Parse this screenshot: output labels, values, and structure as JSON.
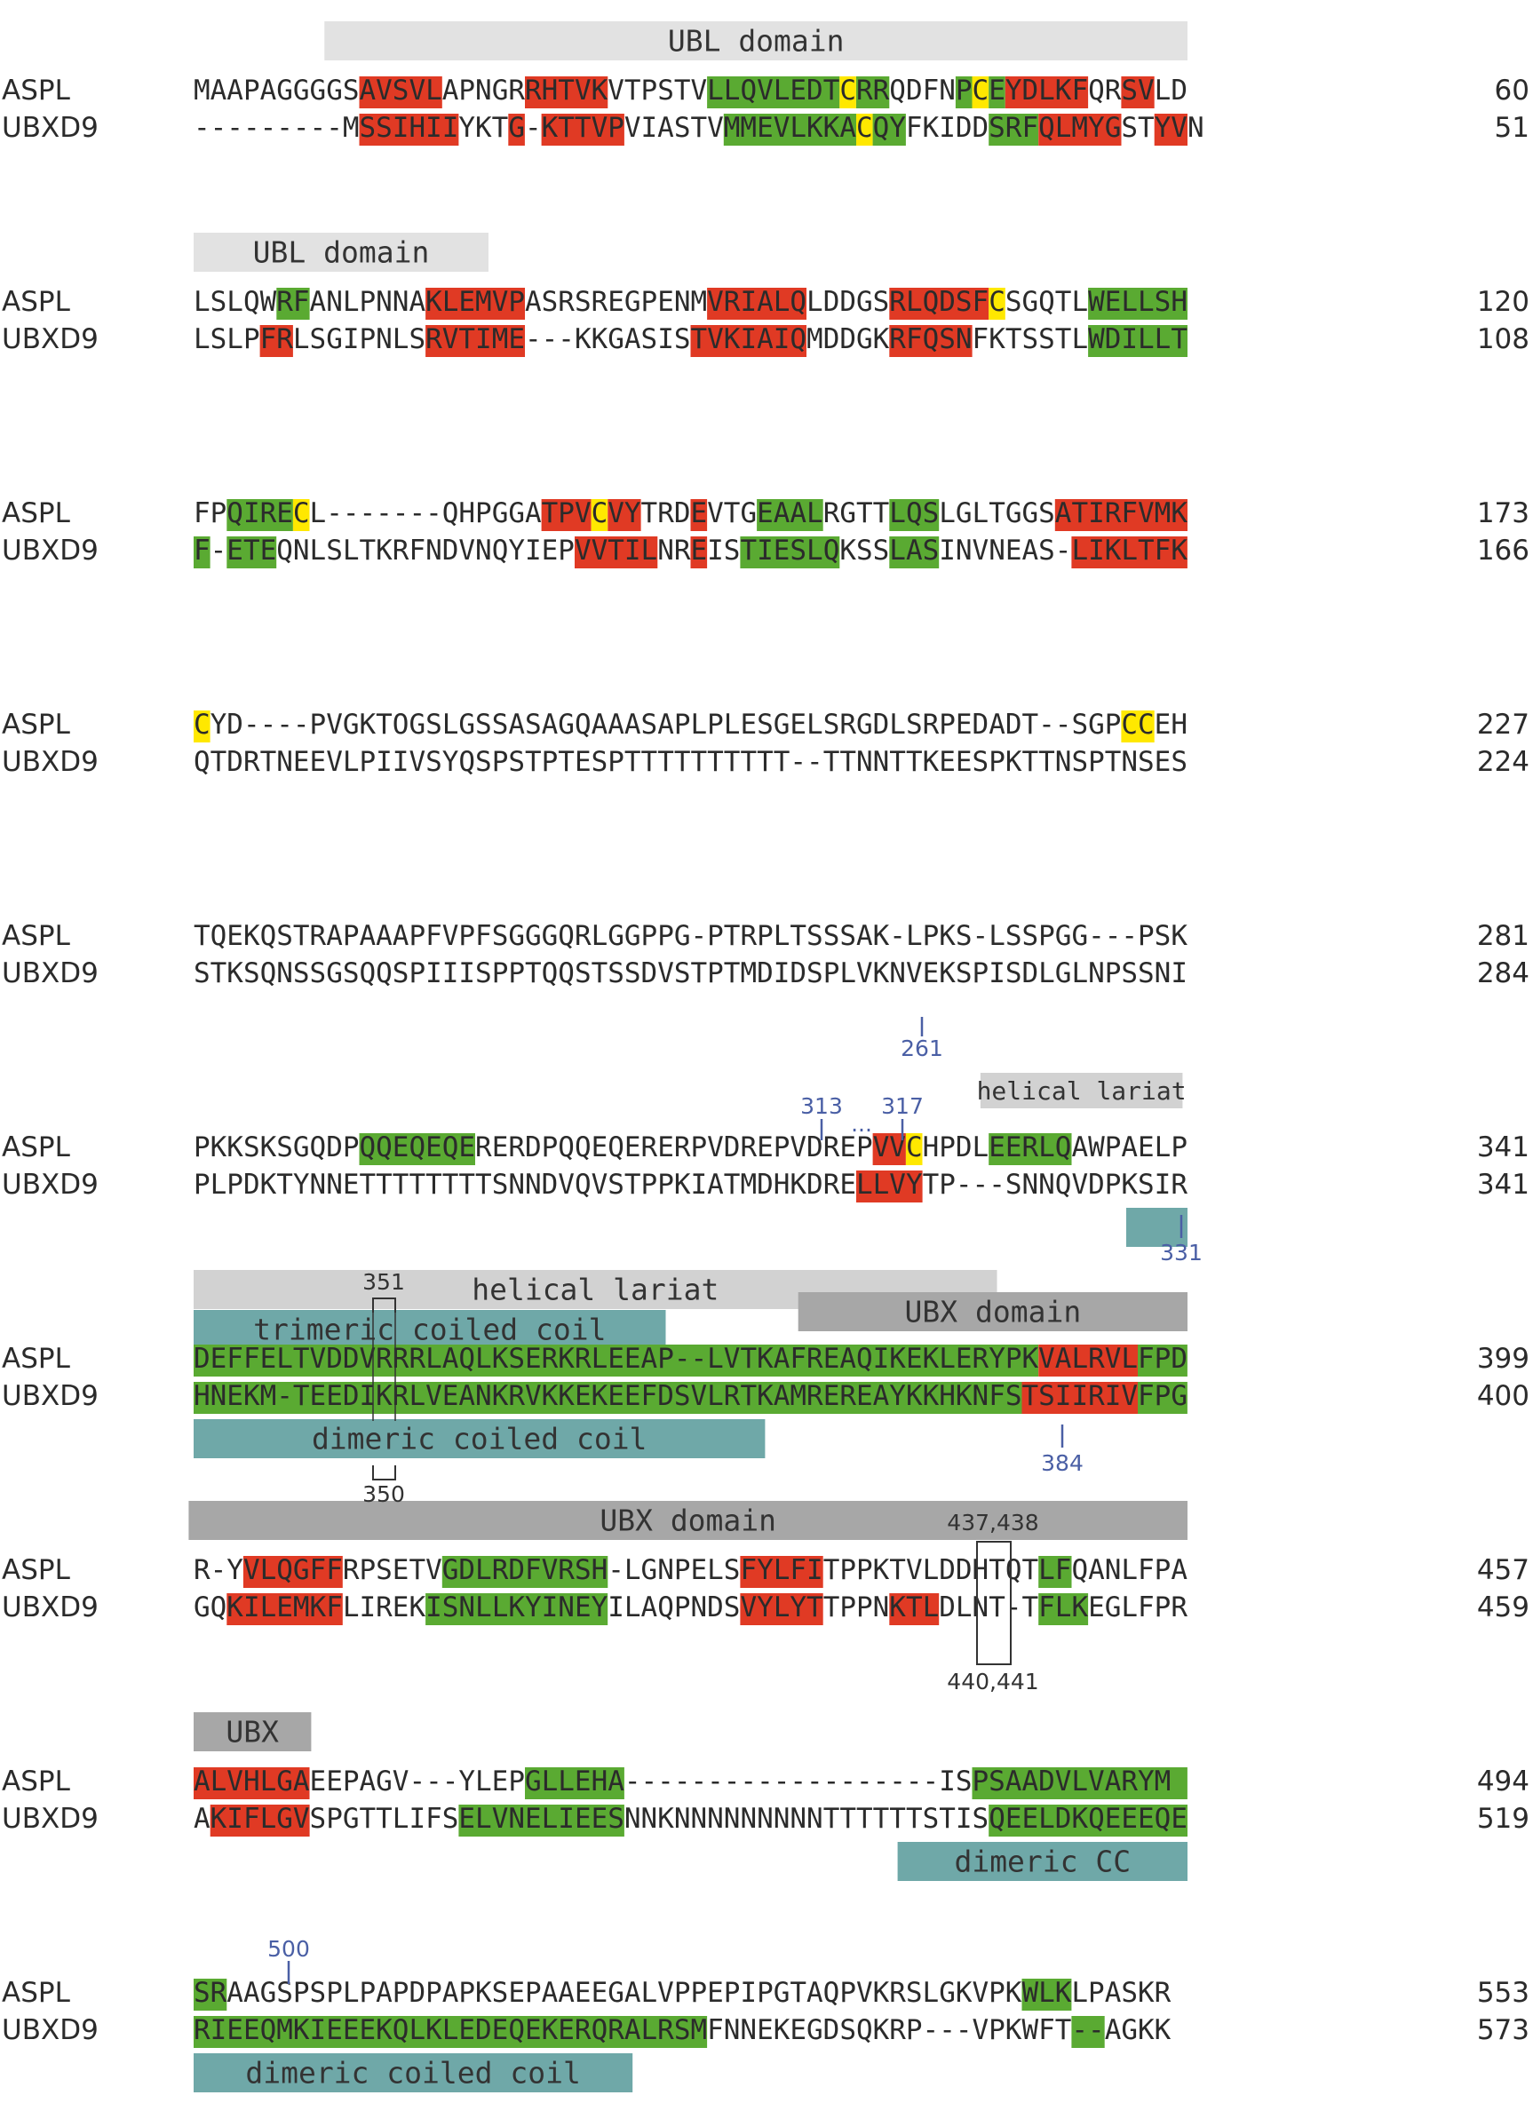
{
  "colors": {
    "strand": "#e03a24",
    "helix": "#5aaa32",
    "cysteine": "#ffe800",
    "bar_light": "#e2e2e2",
    "bar_mid": "#d2d2d2",
    "bar_dark": "#a7a7a7",
    "coiled_coil": "#6fa8a8",
    "marker_blue": "#4a5fa5"
  },
  "blocks": [
    {
      "rows": [
        {
          "name": "ASPL",
          "seq": "MAAPAGGGGSAVSVLAPNGRRHTVKVTPSTVLLQVLEDTCRRQDFNPCEYDLKFQRSVLD",
          "end": "60"
        },
        {
          "name": "UBXD9",
          "seq": "---------MSSIHIIYKTG-KTTVPVIASTVMMEVLKKACQYFKIDDSRFQLMYGSTYVN",
          "end": "51"
        }
      ],
      "regions": [
        {
          "row": 0,
          "s": 10,
          "e": 15,
          "t": "strand"
        },
        {
          "row": 0,
          "s": 20,
          "e": 25,
          "t": "strand"
        },
        {
          "row": 0,
          "s": 31,
          "e": 39,
          "t": "helix"
        },
        {
          "row": 0,
          "s": 39,
          "e": 40,
          "t": "cysteine"
        },
        {
          "row": 0,
          "s": 40,
          "e": 42,
          "t": "helix"
        },
        {
          "row": 0,
          "s": 46,
          "e": 47,
          "t": "helix"
        },
        {
          "row": 0,
          "s": 47,
          "e": 48,
          "t": "cysteine"
        },
        {
          "row": 0,
          "s": 48,
          "e": 49,
          "t": "helix"
        },
        {
          "row": 0,
          "s": 49,
          "e": 54,
          "t": "strand"
        },
        {
          "row": 0,
          "s": 56,
          "e": 58,
          "t": "strand"
        },
        {
          "row": 1,
          "s": 10,
          "e": 16,
          "t": "strand"
        },
        {
          "row": 1,
          "s": 19,
          "e": 20,
          "t": "strand"
        },
        {
          "row": 1,
          "s": 21,
          "e": 26,
          "t": "strand"
        },
        {
          "row": 1,
          "s": 32,
          "e": 40,
          "t": "helix"
        },
        {
          "row": 1,
          "s": 40,
          "e": 41,
          "t": "cysteine"
        },
        {
          "row": 1,
          "s": 41,
          "e": 43,
          "t": "helix"
        },
        {
          "row": 1,
          "s": 48,
          "e": 51,
          "t": "helix"
        },
        {
          "row": 1,
          "s": 51,
          "e": 56,
          "t": "strand"
        },
        {
          "row": 1,
          "s": 58,
          "e": 60,
          "t": "strand"
        }
      ]
    },
    {
      "rows": [
        {
          "name": "ASPL",
          "seq": "LSLQWRFANLPNNAKLEMVPASRSREGPENMVRIALQLDDGSRLQDSFCSGQTLWELLSH",
          "end": "120"
        },
        {
          "name": "UBXD9",
          "seq": "LSLPFRLSGIPNLSRVTIME---KKGASISTVKIAIQMDDGKRFQSNFKTSSTLWDILLT",
          "end": "108"
        }
      ],
      "regions": [
        {
          "row": 0,
          "s": 5,
          "e": 7,
          "t": "helix"
        },
        {
          "row": 0,
          "s": 14,
          "e": 20,
          "t": "strand"
        },
        {
          "row": 0,
          "s": 31,
          "e": 37,
          "t": "strand"
        },
        {
          "row": 0,
          "s": 42,
          "e": 48,
          "t": "strand"
        },
        {
          "row": 0,
          "s": 48,
          "e": 49,
          "t": "cysteine"
        },
        {
          "row": 0,
          "s": 54,
          "e": 60,
          "t": "helix"
        },
        {
          "row": 1,
          "s": 4,
          "e": 6,
          "t": "strand"
        },
        {
          "row": 1,
          "s": 14,
          "e": 20,
          "t": "strand"
        },
        {
          "row": 1,
          "s": 30,
          "e": 37,
          "t": "strand"
        },
        {
          "row": 1,
          "s": 42,
          "e": 47,
          "t": "strand"
        },
        {
          "row": 1,
          "s": 54,
          "e": 60,
          "t": "helix"
        }
      ]
    },
    {
      "rows": [
        {
          "name": "ASPL",
          "seq": "FPQIRECL-------QHPGGATPVCVYTRDEVTGEAALRGTTLQSLGLTGGSATIRFVMK",
          "end": "173"
        },
        {
          "name": "UBXD9",
          "seq": "F-ETEQNLSLTKRFNDVNQYIEPVVTILNREISTIESLQKSSLASINVNEAS-LIKLTFK",
          "end": "166"
        }
      ],
      "regions": [
        {
          "row": 0,
          "s": 2,
          "e": 6,
          "t": "helix"
        },
        {
          "row": 0,
          "s": 6,
          "e": 7,
          "t": "cysteine"
        },
        {
          "row": 0,
          "s": 21,
          "e": 24,
          "t": "strand"
        },
        {
          "row": 0,
          "s": 24,
          "e": 25,
          "t": "cysteine"
        },
        {
          "row": 0,
          "s": 25,
          "e": 27,
          "t": "strand"
        },
        {
          "row": 0,
          "s": 30,
          "e": 31,
          "t": "strand"
        },
        {
          "row": 0,
          "s": 34,
          "e": 38,
          "t": "helix"
        },
        {
          "row": 0,
          "s": 42,
          "e": 45,
          "t": "helix"
        },
        {
          "row": 0,
          "s": 52,
          "e": 60,
          "t": "strand"
        },
        {
          "row": 1,
          "s": 0,
          "e": 1,
          "t": "helix"
        },
        {
          "row": 1,
          "s": 2,
          "e": 5,
          "t": "helix"
        },
        {
          "row": 1,
          "s": 23,
          "e": 28,
          "t": "strand"
        },
        {
          "row": 1,
          "s": 30,
          "e": 31,
          "t": "strand"
        },
        {
          "row": 1,
          "s": 33,
          "e": 39,
          "t": "helix"
        },
        {
          "row": 1,
          "s": 42,
          "e": 45,
          "t": "helix"
        },
        {
          "row": 1,
          "s": 53,
          "e": 60,
          "t": "strand"
        }
      ]
    },
    {
      "rows": [
        {
          "name": "ASPL",
          "seq": "CYD----PVGKTOGSLGSSASAGQAAASAPLPLESGELSRGDLSRPEDADT--SGPCCEH",
          "end": "227"
        },
        {
          "name": "UBXD9",
          "seq": "QTDRTNEEVLPIIVSYQSPSTPTESPTTTTTTTTTT--TTNNTTKEESPKTTNSPTNSES",
          "end": "224"
        }
      ],
      "regions": [
        {
          "row": 0,
          "s": 0,
          "e": 1,
          "t": "cysteine"
        },
        {
          "row": 0,
          "s": 56,
          "e": 58,
          "t": "cysteine"
        }
      ]
    },
    {
      "rows": [
        {
          "name": "ASPL",
          "seq": "TQEKQSTRAPAAAPFVPFSGGGQRLGGPPG-PTRPLTSSSAK-LPKS-LSSPGG---PSK",
          "end": "281"
        },
        {
          "name": "UBXD9",
          "seq": "STKSQNSSGSQQSPIIISPPTQQSTSSDVSTPTMDIDSPLVKNVEKSPISDLGLNPSSNI",
          "end": "284"
        }
      ],
      "regions": []
    },
    {
      "rows": [
        {
          "name": "ASPL",
          "seq": "PKKSKSGQDPQQEQEQERERDPQQEQERERPVDREPVDREPVVCHPDLEERLQAWPAELP",
          "end": "341"
        },
        {
          "name": "UBXD9",
          "seq": "PLPDKTYNNETTTTTTTTSNNDVQVSTPPKIATMDHKDRELLVYTP---SNNQVDPKSIR",
          "end": "341"
        }
      ],
      "regions": [
        {
          "row": 0,
          "s": 10,
          "e": 17,
          "t": "helix"
        },
        {
          "row": 0,
          "s": 41,
          "e": 43,
          "t": "strand"
        },
        {
          "row": 0,
          "s": 43,
          "e": 44,
          "t": "cysteine"
        },
        {
          "row": 0,
          "s": 48,
          "e": 53,
          "t": "helix"
        },
        {
          "row": 1,
          "s": 40,
          "e": 44,
          "t": "strand"
        }
      ]
    },
    {
      "rows": [
        {
          "name": "ASPL",
          "seq": "DEFFELTVDDVRRRLAQLKSERKRLEEAP--LVTKAFREAQIKEKLERYPKVALRVLFPD",
          "end": "399"
        },
        {
          "name": "UBXD9",
          "seq": "HNEKM-TEEDIKRLVEANKRVKKEKEEFDSVLRTKAMREREAYKKHKNFSTSIIRIVFPG",
          "end": "400"
        }
      ],
      "regions": [
        {
          "row": 0,
          "s": 0,
          "e": 51,
          "t": "helix"
        },
        {
          "row": 0,
          "s": 51,
          "e": 57,
          "t": "strand"
        },
        {
          "row": 0,
          "s": 57,
          "e": 60,
          "t": "helix"
        },
        {
          "row": 1,
          "s": 0,
          "e": 50,
          "t": "helix"
        },
        {
          "row": 1,
          "s": 50,
          "e": 57,
          "t": "strand"
        },
        {
          "row": 1,
          "s": 57,
          "e": 60,
          "t": "helix"
        }
      ]
    },
    {
      "rows": [
        {
          "name": "ASPL",
          "seq": "R-YVLQGFFRPSETVGDLRDFVRSH-LGNPELSFYLFITPPKTVLDDHTQTLFQANLFPA",
          "end": "457"
        },
        {
          "name": "UBXD9",
          "seq": "GQKILEMKFLIREKISNLLKYINEYILAQPNDSVYLYTTPPNKTLDLNT-TFLKEGLFPR",
          "end": "459"
        }
      ],
      "regions": [
        {
          "row": 0,
          "s": 3,
          "e": 9,
          "t": "strand"
        },
        {
          "row": 0,
          "s": 15,
          "e": 25,
          "t": "helix"
        },
        {
          "row": 0,
          "s": 33,
          "e": 38,
          "t": "strand"
        },
        {
          "row": 0,
          "s": 51,
          "e": 53,
          "t": "helix"
        },
        {
          "row": 1,
          "s": 2,
          "e": 9,
          "t": "strand"
        },
        {
          "row": 1,
          "s": 14,
          "e": 25,
          "t": "helix"
        },
        {
          "row": 1,
          "s": 33,
          "e": 38,
          "t": "strand"
        },
        {
          "row": 1,
          "s": 42,
          "e": 45,
          "t": "strand"
        },
        {
          "row": 1,
          "s": 51,
          "e": 54,
          "t": "helix"
        }
      ]
    },
    {
      "rows": [
        {
          "name": "ASPL",
          "seq": "ALVHLGAEEPAGV---YLEPGLLEHA-------------------ISPSAADVLVARYM",
          "end": "494"
        },
        {
          "name": "UBXD9",
          "seq": "AKIFLGVSPGTTLIFSELVNELIEESNNKNNNNNNNNNTTTTTTSTISQEELDKQEEEQE",
          "end": "519"
        }
      ],
      "regions": [
        {
          "row": 0,
          "s": 0,
          "e": 7,
          "t": "strand"
        },
        {
          "row": 0,
          "s": 20,
          "e": 26,
          "t": "helix"
        },
        {
          "row": 0,
          "s": 47,
          "e": 60,
          "t": "helix"
        },
        {
          "row": 1,
          "s": 1,
          "e": 7,
          "t": "strand"
        },
        {
          "row": 1,
          "s": 16,
          "e": 26,
          "t": "helix"
        },
        {
          "row": 1,
          "s": 48,
          "e": 60,
          "t": "helix"
        }
      ]
    },
    {
      "rows": [
        {
          "name": "ASPL",
          "seq": "SRAAGSPSPLPAPDPAPKSEPAAEEGALVPPEPIPGTAQPVKRSLGKVPKWLKLPASKR",
          "end": "553"
        },
        {
          "name": "UBXD9",
          "seq": "RIEEQMKIEEEKQLKLEDEQEKERQRALRSMFNNEKEGDSQKRP---VPKWFT--AGKK",
          "end": "573"
        }
      ],
      "regions": [
        {
          "row": 0,
          "s": 0,
          "e": 2,
          "t": "helix"
        },
        {
          "row": 0,
          "s": 50,
          "e": 53,
          "t": "helix"
        },
        {
          "row": 1,
          "s": 0,
          "e": 31,
          "t": "helix"
        },
        {
          "row": 1,
          "s": 53,
          "e": 55,
          "t": "helix"
        }
      ]
    }
  ],
  "bars": [
    {
      "block": 0,
      "style": "bar_light",
      "text": "UBL domain",
      "s": 7.9,
      "e": 60,
      "pos": "above"
    },
    {
      "block": 1,
      "style": "bar_light",
      "text": "UBL domain",
      "s": 0,
      "e": 17.8,
      "pos": "above"
    },
    {
      "block": 5,
      "style": "bar_mid",
      "text": "helical lariat",
      "s": 47.5,
      "e": 59.7,
      "pos": "above-small"
    },
    {
      "block": 5,
      "style": "coiled_coil",
      "text": "",
      "s": 56.3,
      "e": 60,
      "pos": "below"
    },
    {
      "block": 6,
      "style": "bar_mid",
      "text": "helical lariat",
      "s": 0,
      "e": 48.5,
      "pos": "above2"
    },
    {
      "block": 6,
      "style": "bar_dark",
      "text": "UBX domain",
      "s": 36.5,
      "e": 60,
      "pos": "above1b"
    },
    {
      "block": 6,
      "style": "coiled_coil",
      "text": "trimeric coiled coil",
      "s": 0,
      "e": 28.5,
      "pos": "above1"
    },
    {
      "block": 6,
      "style": "coiled_coil",
      "text": "dimeric coiled coil",
      "s": 0,
      "e": 34.5,
      "pos": "below"
    },
    {
      "block": 7,
      "style": "bar_dark",
      "text": "UBX domain",
      "s": -0.3,
      "e": 60,
      "pos": "above"
    },
    {
      "block": 8,
      "style": "bar_dark",
      "text": "UBX",
      "s": 0,
      "e": 7.1,
      "pos": "above"
    },
    {
      "block": 8,
      "style": "coiled_coil",
      "text": "dimeric CC",
      "s": 42.5,
      "e": 60,
      "pos": "below"
    },
    {
      "block": 9,
      "style": "coiled_coil",
      "text": "dimeric coiled coil",
      "s": 0,
      "e": 26.5,
      "pos": "below"
    }
  ],
  "annotations": {
    "a261": "261",
    "a313": "313",
    "a317": "317",
    "dots": "···",
    "a331": "331",
    "a351": "351",
    "a350": "350",
    "a384": "384",
    "a500": "500",
    "a437": "437,438",
    "a440": "440,441"
  }
}
